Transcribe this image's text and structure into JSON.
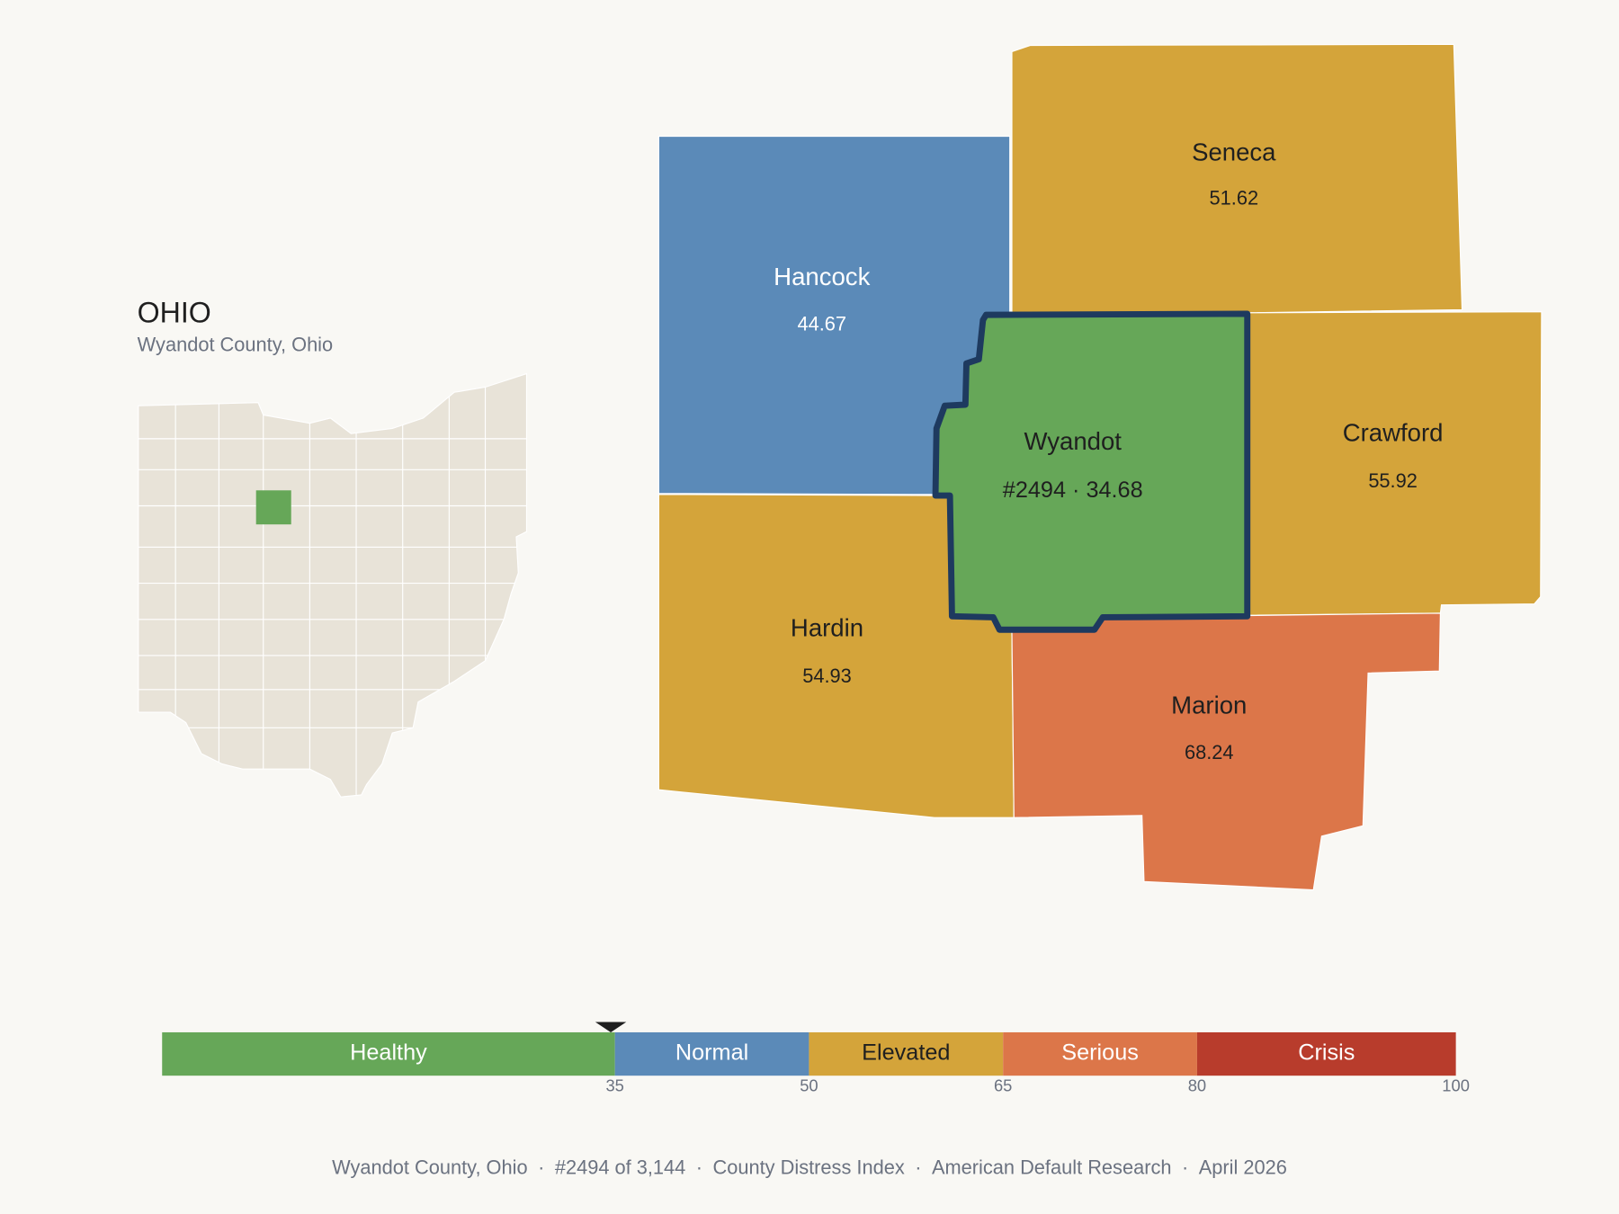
{
  "header": {
    "title": "OHIO",
    "subtitle": "Wyandot County, Ohio"
  },
  "counties": [
    {
      "name": "Hancock",
      "value": 44.67,
      "color": "#5b8ab8",
      "text_color": "#ffffff"
    },
    {
      "name": "Seneca",
      "value": 51.62,
      "color": "#d4a43a",
      "text_color": "#1f1f1f"
    },
    {
      "name": "Wyandot",
      "label": "#2494 · 34.68",
      "value": 34.68,
      "color": "#66a758",
      "text_color": "#1f1f1f",
      "selected": true
    },
    {
      "name": "Crawford",
      "value": 55.92,
      "color": "#d4a43a",
      "text_color": "#1f1f1f"
    },
    {
      "name": "Hardin",
      "value": 54.93,
      "color": "#d4a43a",
      "text_color": "#1f1f1f"
    },
    {
      "name": "Marion",
      "value": 68.24,
      "color": "#dc7649",
      "text_color": "#1f1f1f"
    }
  ],
  "scale": {
    "range": [
      0,
      100
    ],
    "ticks": [
      35,
      50,
      65,
      80,
      100
    ],
    "bands": [
      {
        "name": "Healthy",
        "color": "#66a758",
        "text_color": "#ffffff"
      },
      {
        "name": "Normal",
        "color": "#5b8ab8",
        "text_color": "#ffffff"
      },
      {
        "name": "Elevated",
        "color": "#d4a43a",
        "text_color": "#1f1f1f"
      },
      {
        "name": "Serious",
        "color": "#dc7649",
        "text_color": "#ffffff"
      },
      {
        "name": "Crisis",
        "color": "#b83c2c",
        "text_color": "#ffffff"
      }
    ]
  },
  "footer": {
    "items": [
      "Wyandot County, Ohio",
      "#2494 of 3,144",
      "County Distress Index",
      "American Default Research",
      "April 2026"
    ],
    "separator": "·"
  }
}
